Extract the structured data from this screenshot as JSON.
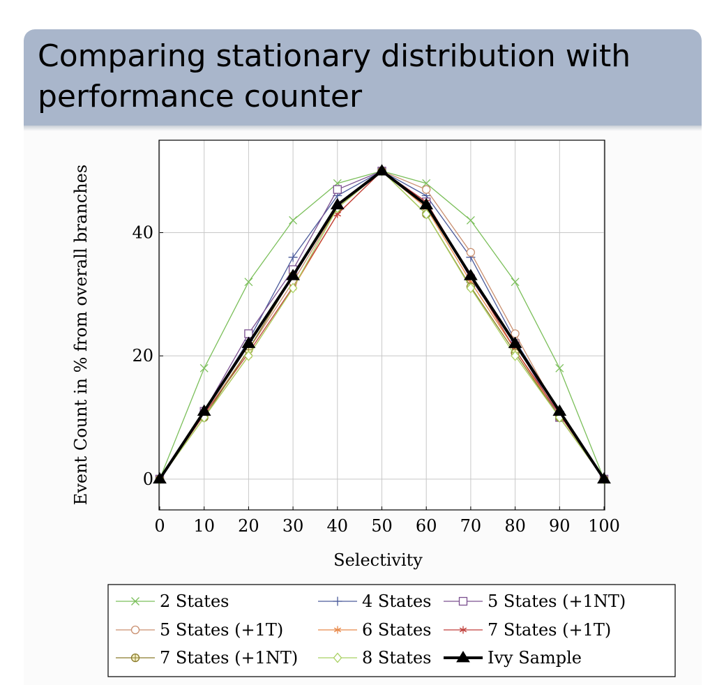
{
  "slide": {
    "title": "Comparing stationary distribution with performance counter"
  },
  "chart_data": {
    "type": "line",
    "xlabel": "Selectivity",
    "ylabel": "Event Count in % from overall branches",
    "x": [
      0,
      10,
      20,
      30,
      40,
      50,
      60,
      70,
      80,
      90,
      100
    ],
    "xlim": [
      0,
      100
    ],
    "ylim": [
      -5,
      55
    ],
    "xticks": [
      0,
      10,
      20,
      30,
      40,
      50,
      60,
      70,
      80,
      90,
      100
    ],
    "yticks": [
      0,
      20,
      40
    ],
    "grid": true,
    "legend_placement": "bottom",
    "series": [
      {
        "name": "2 States",
        "color": "#7bbf5a",
        "marker": "x",
        "values": [
          0,
          18,
          32,
          42,
          48,
          50,
          48,
          42,
          32,
          18,
          0
        ]
      },
      {
        "name": "4 States",
        "color": "#4a5a9a",
        "marker": "plus",
        "values": [
          0,
          11,
          22.5,
          36,
          46,
          50,
          46,
          36,
          22.5,
          11,
          0
        ]
      },
      {
        "name": "5 States (+1NT)",
        "color": "#7a4f8f",
        "marker": "square",
        "values": [
          0,
          11,
          23.6,
          34,
          47,
          50,
          45,
          32.5,
          22,
          10,
          0
        ]
      },
      {
        "name": "5 States (+1T)",
        "color": "#c98f6f",
        "marker": "circle",
        "values": [
          0,
          10.5,
          21,
          32,
          44,
          50,
          47,
          36.8,
          23.6,
          10.5,
          0
        ]
      },
      {
        "name": "6 States",
        "color": "#e8894a",
        "marker": "asterisk",
        "values": [
          0,
          10,
          20,
          31,
          43,
          50,
          44,
          32,
          21,
          10,
          0
        ]
      },
      {
        "name": "7 States (+1T)",
        "color": "#c03f3a",
        "marker": "asterisk",
        "values": [
          0,
          10.5,
          20.5,
          31.2,
          43,
          50,
          45,
          33,
          21,
          10.5,
          0
        ]
      },
      {
        "name": "7 States (+1NT)",
        "color": "#8a7a2a",
        "marker": "oplus",
        "values": [
          0,
          10,
          21,
          33,
          44,
          50,
          43,
          31.2,
          20.5,
          10,
          0
        ]
      },
      {
        "name": "8 States",
        "color": "#a8d060",
        "marker": "diamond",
        "values": [
          0,
          10,
          20,
          31,
          44,
          50,
          43,
          31,
          20,
          10,
          0
        ]
      },
      {
        "name": "Ivy Sample",
        "color": "#000000",
        "marker": "triangle",
        "bold": true,
        "values": [
          0,
          11,
          22,
          33,
          44.5,
          50,
          44.5,
          33,
          22,
          11,
          0
        ]
      }
    ]
  }
}
